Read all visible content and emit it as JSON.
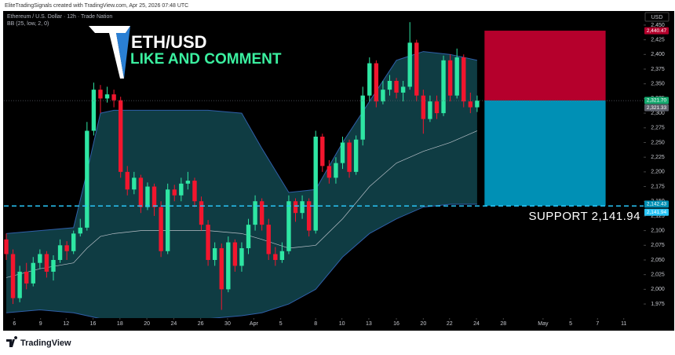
{
  "chart_data": {
    "type": "candlestick",
    "title": "ETH/USD",
    "subtitle": "LIKE AND COMMENT",
    "source_note": "EliteTradingSignals created with TradingView.com, Apr 25, 2026 07:48 UTC",
    "symbol_label": "Ethereum / U.S. Dollar · 12h · Trade Nation",
    "indicator_label": "BB (25, low, 2, 0)",
    "currency": "USD",
    "brand": "TradingView",
    "up_color": "#2ee6a3",
    "down_color": "#f2162e",
    "xlim": [
      -0.35,
      94.75
    ],
    "ylim": [
      1951,
      2474
    ],
    "grid": false,
    "xticks": [
      {
        "value": 1.2,
        "label": "6"
      },
      {
        "value": 5.1,
        "label": "9"
      },
      {
        "value": 8.9,
        "label": "12"
      },
      {
        "value": 12.9,
        "label": "16"
      },
      {
        "value": 16.9,
        "label": "18"
      },
      {
        "value": 20.9,
        "label": "20"
      },
      {
        "value": 24.9,
        "label": "24"
      },
      {
        "value": 28.9,
        "label": "26"
      },
      {
        "value": 32.9,
        "label": "30"
      },
      {
        "value": 36.8,
        "label": "Apr"
      },
      {
        "value": 40.8,
        "label": "5"
      },
      {
        "value": 46,
        "label": "8"
      },
      {
        "value": 49.9,
        "label": "10"
      },
      {
        "value": 53.9,
        "label": "13"
      },
      {
        "value": 58,
        "label": "16"
      },
      {
        "value": 62,
        "label": "20"
      },
      {
        "value": 65.9,
        "label": "22"
      },
      {
        "value": 69.9,
        "label": "24"
      },
      {
        "value": 73.9,
        "label": "28"
      },
      {
        "value": 79.8,
        "label": "May"
      },
      {
        "value": 83.9,
        "label": "5"
      },
      {
        "value": 87.9,
        "label": "7"
      },
      {
        "value": 91.8,
        "label": "11"
      }
    ],
    "yticks": [
      {
        "value": 2450,
        "label": "2,450"
      },
      {
        "value": 2425,
        "label": "2,425"
      },
      {
        "value": 2400,
        "label": "2,400"
      },
      {
        "value": 2375,
        "label": "2,375"
      },
      {
        "value": 2350,
        "label": "2,350"
      },
      {
        "value": 2325,
        "label": "2,325"
      },
      {
        "value": 2300,
        "label": "2,300"
      },
      {
        "value": 2275,
        "label": "2,275"
      },
      {
        "value": 2250,
        "label": "2,250"
      },
      {
        "value": 2225,
        "label": "2,225"
      },
      {
        "value": 2200,
        "label": "2,200"
      },
      {
        "value": 2175,
        "label": "2,175"
      },
      {
        "value": 2150,
        "label": "2,150"
      },
      {
        "value": 2125,
        "label": "2,125"
      },
      {
        "value": 2100,
        "label": "2,100"
      },
      {
        "value": 2075,
        "label": "2,075"
      },
      {
        "value": 2050,
        "label": "2,050"
      },
      {
        "value": 2025,
        "label": "2,025"
      },
      {
        "value": 2000,
        "label": "2,000"
      },
      {
        "value": 1975,
        "label": "1,975"
      }
    ],
    "x": [
      0,
      1,
      2,
      3,
      4,
      5,
      6,
      7,
      8,
      9,
      10,
      11,
      12,
      13,
      14,
      15,
      16,
      17,
      18,
      19,
      20,
      21,
      22,
      23,
      24,
      25,
      26,
      27,
      28,
      29,
      30,
      31,
      32,
      33,
      34,
      35,
      36,
      37,
      38,
      39,
      40,
      41,
      42,
      43,
      44,
      45,
      46,
      47,
      48,
      49,
      50,
      51,
      52,
      53,
      54,
      55,
      56,
      57,
      58,
      59,
      60,
      61,
      62,
      63,
      64,
      65,
      66,
      67,
      68,
      69,
      70
    ],
    "open": [
      2085,
      2060,
      1985,
      2030,
      2010,
      2045,
      2060,
      2030,
      2050,
      2075,
      2065,
      2095,
      2105,
      2270,
      2340,
      2325,
      2332,
      2322,
      2200,
      2170,
      2190,
      2140,
      2175,
      2140,
      2065,
      2170,
      2160,
      2180,
      2185,
      2150,
      2110,
      2050,
      2070,
      2000,
      2080,
      2040,
      2070,
      2110,
      2150,
      2110,
      2060,
      2050,
      2065,
      2150,
      2130,
      2150,
      2100,
      2260,
      2210,
      2190,
      2215,
      2250,
      2200,
      2255,
      2330,
      2385,
      2320,
      2340,
      2355,
      2335,
      2345,
      2420,
      2330,
      2290,
      2320,
      2300,
      2390,
      2330,
      2395,
      2320,
      2310
    ],
    "high": [
      2095,
      2068,
      2040,
      2045,
      2055,
      2068,
      2065,
      2058,
      2085,
      2082,
      2100,
      2120,
      2285,
      2352,
      2348,
      2345,
      2340,
      2328,
      2210,
      2200,
      2195,
      2182,
      2180,
      2150,
      2180,
      2178,
      2190,
      2200,
      2190,
      2158,
      2118,
      2080,
      2078,
      2090,
      2085,
      2080,
      2120,
      2160,
      2155,
      2120,
      2072,
      2080,
      2160,
      2155,
      2160,
      2155,
      2270,
      2265,
      2220,
      2225,
      2260,
      2255,
      2262,
      2345,
      2395,
      2390,
      2355,
      2365,
      2360,
      2355,
      2455,
      2425,
      2340,
      2330,
      2330,
      2398,
      2400,
      2410,
      2400,
      2335,
      2330
    ],
    "low": [
      2050,
      1975,
      1978,
      2000,
      2005,
      2035,
      2020,
      2015,
      2045,
      2050,
      2060,
      2090,
      2100,
      2262,
      2300,
      2318,
      2310,
      2190,
      2160,
      2162,
      2130,
      2135,
      2125,
      2055,
      2060,
      2150,
      2150,
      2170,
      2140,
      2100,
      2040,
      2040,
      1965,
      1995,
      2030,
      2030,
      2060,
      2100,
      2100,
      2050,
      2040,
      2045,
      2060,
      2115,
      2120,
      2090,
      2095,
      2200,
      2180,
      2180,
      2205,
      2190,
      2195,
      2245,
      2320,
      2310,
      2315,
      2330,
      2325,
      2320,
      2340,
      2320,
      2265,
      2285,
      2290,
      2295,
      2320,
      2325,
      2310,
      2300,
      2302
    ],
    "close": [
      2060,
      1985,
      2030,
      2010,
      2045,
      2060,
      2030,
      2050,
      2075,
      2065,
      2095,
      2105,
      2270,
      2340,
      2325,
      2332,
      2322,
      2200,
      2170,
      2190,
      2140,
      2175,
      2140,
      2065,
      2170,
      2160,
      2180,
      2185,
      2150,
      2110,
      2050,
      2070,
      2000,
      2080,
      2040,
      2070,
      2110,
      2150,
      2110,
      2060,
      2050,
      2065,
      2150,
      2130,
      2150,
      2100,
      2260,
      2210,
      2190,
      2215,
      2250,
      2200,
      2255,
      2330,
      2385,
      2320,
      2340,
      2355,
      2335,
      2345,
      2420,
      2330,
      2290,
      2320,
      2300,
      2390,
      2330,
      2395,
      2320,
      2310,
      2321.33
    ],
    "bands": {
      "x": [
        0,
        5,
        10,
        12,
        14,
        16,
        20,
        25,
        30,
        35,
        38,
        42,
        46,
        50,
        54,
        58,
        62,
        66,
        70
      ],
      "upper": [
        2095,
        2100,
        2105,
        2200,
        2300,
        2305,
        2305,
        2305,
        2305,
        2300,
        2240,
        2165,
        2170,
        2250,
        2320,
        2390,
        2405,
        2400,
        2390
      ],
      "middle": [
        2020,
        2035,
        2045,
        2070,
        2090,
        2095,
        2100,
        2100,
        2100,
        2095,
        2085,
        2070,
        2075,
        2120,
        2175,
        2215,
        2235,
        2250,
        2270
      ],
      "lower": [
        1960,
        1965,
        1960,
        1955,
        1950,
        1950,
        1950,
        1950,
        1950,
        1955,
        1960,
        1975,
        2000,
        2055,
        2095,
        2120,
        2140,
        2145,
        2145
      ],
      "fill_color": "#14505a",
      "edge_color": "#2f5fa8",
      "middle_color": "#b8c0c8"
    },
    "position": {
      "x": [
        71.1,
        89.1
      ],
      "stop": {
        "value": 2440.47,
        "label": "2,440.47"
      },
      "entry": {
        "value": 2321.7,
        "label": "2,321.70"
      },
      "target": {
        "value": 2142.43,
        "label": "2,142.43"
      },
      "stop_color": "#b5002c",
      "entry_color": "#14a86e",
      "target_color": "#0090b5"
    },
    "last_price": {
      "value": 2321.33,
      "label": "2,321.33",
      "color": "#5d606b"
    },
    "support": {
      "value": 2141.94,
      "label": "2,141.94",
      "text": "SUPPORT 2,141.94",
      "color": "#29c5f6"
    }
  }
}
